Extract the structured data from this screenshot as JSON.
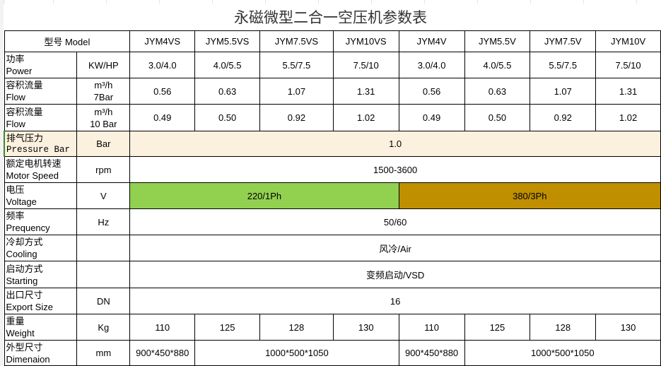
{
  "title": "永磁微型二合一空压机参数表",
  "header": {
    "model_label": "型号 Model",
    "models": [
      "JYM4VS",
      "JYM5.5VS",
      "JYM7.5VS",
      "JYM10VS",
      "JYM4V",
      "JYM5.5V",
      "JYM7.5V",
      "JYM10V"
    ]
  },
  "colors": {
    "voltage_220": "#92d050",
    "voltage_380": "#bf8f00",
    "pressure_row": "#fcf1de"
  },
  "rows": [
    {
      "cn": "功率",
      "en": "Power",
      "unit": [
        "KW/HP"
      ],
      "cells": [
        {
          "text": "3.0/4.0",
          "span": 1
        },
        {
          "text": "4.0/5.5",
          "span": 1
        },
        {
          "text": "5.5/7.5",
          "span": 1
        },
        {
          "text": "7.5/10",
          "span": 1
        },
        {
          "text": "3.0/4.0",
          "span": 1
        },
        {
          "text": "4.0/5.5",
          "span": 1
        },
        {
          "text": "5.5/7.5",
          "span": 1
        },
        {
          "text": "7.5/10",
          "span": 1
        }
      ]
    },
    {
      "cn": "容积流量",
      "en": "Flow",
      "unit": [
        "m³/h",
        "7Bar"
      ],
      "cells": [
        {
          "text": "0.56",
          "span": 1
        },
        {
          "text": "0.63",
          "span": 1
        },
        {
          "text": "1.07",
          "span": 1
        },
        {
          "text": "1.31",
          "span": 1
        },
        {
          "text": "0.56",
          "span": 1
        },
        {
          "text": "0.63",
          "span": 1
        },
        {
          "text": "1.07",
          "span": 1
        },
        {
          "text": "1.31",
          "span": 1
        }
      ]
    },
    {
      "cn": "容积流量",
      "en": "Flow",
      "unit": [
        "m³/h",
        "10 Bar"
      ],
      "cells": [
        {
          "text": "0.49",
          "span": 1
        },
        {
          "text": "0.50",
          "span": 1
        },
        {
          "text": "0.92",
          "span": 1
        },
        {
          "text": "1.02",
          "span": 1
        },
        {
          "text": "0.49",
          "span": 1
        },
        {
          "text": "0.50",
          "span": 1
        },
        {
          "text": "0.92",
          "span": 1
        },
        {
          "text": "1.02",
          "span": 1
        }
      ]
    },
    {
      "cn": "排气压力",
      "en": "Pressure Bar",
      "unit": [
        "Bar"
      ],
      "cells": [
        {
          "text": "1.0",
          "span": 8
        }
      ]
    },
    {
      "cn": "额定电机转速",
      "en": "Motor Speed",
      "unit": [
        "rpm"
      ],
      "cells": [
        {
          "text": "1500-3600",
          "span": 8
        }
      ]
    },
    {
      "cn": "电压",
      "en": "Voltage",
      "unit": [
        "V"
      ],
      "cells": [
        {
          "text": "220/1Ph",
          "span": 4,
          "color": "green"
        },
        {
          "text": "380/3Ph",
          "span": 4,
          "color": "brown"
        }
      ]
    },
    {
      "cn": "频率",
      "en": "Prequency",
      "unit": [
        "Hz"
      ],
      "cells": [
        {
          "text": "50/60",
          "span": 8
        }
      ]
    },
    {
      "cn": "冷却方式",
      "en": "Cooling",
      "unit": [],
      "cells": [
        {
          "text": "风冷/Air",
          "span": 8
        }
      ]
    },
    {
      "cn": "启动方式",
      "en": "Starting",
      "unit": [],
      "cells": [
        {
          "text": "变频启动/VSD",
          "span": 8
        }
      ]
    },
    {
      "cn": "出口尺寸",
      "en": "Export Size",
      "unit": [
        "DN"
      ],
      "cells": [
        {
          "text": "16",
          "span": 8
        }
      ]
    },
    {
      "cn": "重量",
      "en": "Weight",
      "unit": [
        "Kg"
      ],
      "cells": [
        {
          "text": "110",
          "span": 1
        },
        {
          "text": "125",
          "span": 1
        },
        {
          "text": "128",
          "span": 1
        },
        {
          "text": "130",
          "span": 1
        },
        {
          "text": "110",
          "span": 1
        },
        {
          "text": "125",
          "span": 1
        },
        {
          "text": "128",
          "span": 1
        },
        {
          "text": "130",
          "span": 1
        }
      ]
    },
    {
      "cn": "外型尺寸",
      "en": "Dimenaion",
      "unit": [
        "mm"
      ],
      "cells": [
        {
          "text": "900*450*880",
          "span": 1
        },
        {
          "text": "1000*500*1050",
          "span": 3
        },
        {
          "text": "900*450*880",
          "span": 1
        },
        {
          "text": "1000*500*1050",
          "span": 3
        }
      ]
    }
  ]
}
